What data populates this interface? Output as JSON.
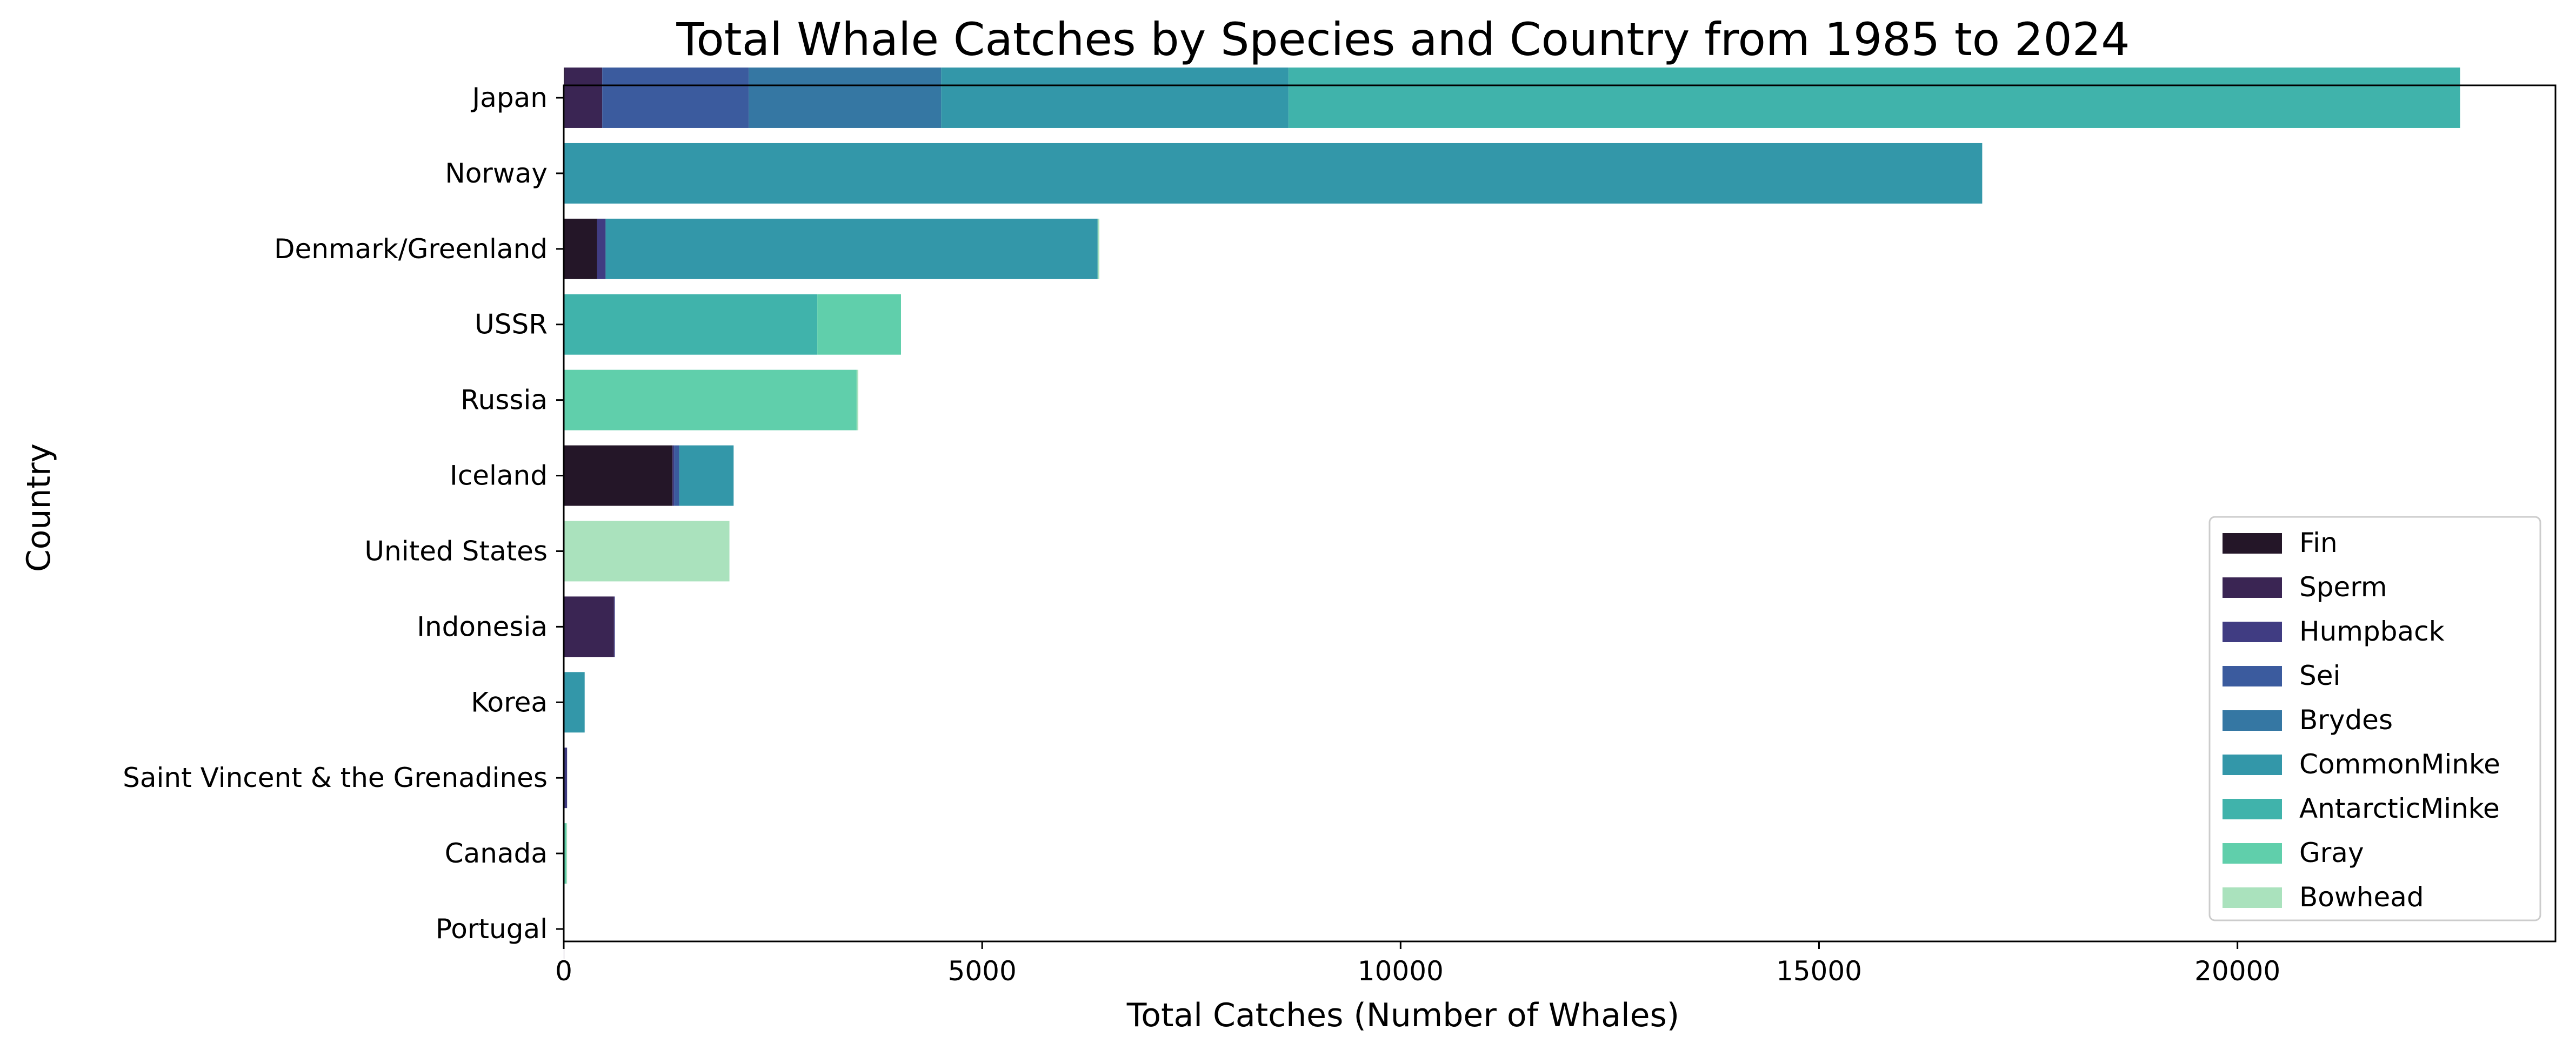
{
  "chart_data": {
    "type": "bar",
    "orientation": "horizontal",
    "stacked": true,
    "title": "Total Whale Catches by Species and Country from 1985 to 2024",
    "xlabel": "Total Catches (Number of Whales)",
    "ylabel": "Country",
    "xlim": [
      0,
      23800
    ],
    "xticks": [
      0,
      5000,
      10000,
      15000,
      20000
    ],
    "grid": false,
    "legend_position": "lower-right",
    "categories": [
      "Japan",
      "Norway",
      "Denmark/Greenland",
      "USSR",
      "Russia",
      "Iceland",
      "United States",
      "Indonesia",
      "Korea",
      "Saint Vincent & the Grenadines",
      "Canada",
      "Portugal"
    ],
    "series": [
      {
        "name": "Fin",
        "color": "#241628",
        "values": [
          10,
          0,
          400,
          0,
          0,
          1300,
          0,
          0,
          0,
          0,
          0,
          0
        ]
      },
      {
        "name": "Sperm",
        "color": "#3a2553",
        "values": [
          450,
          0,
          0,
          0,
          0,
          0,
          0,
          600,
          0,
          0,
          0,
          5
        ]
      },
      {
        "name": "Humpback",
        "color": "#403c82",
        "values": [
          0,
          0,
          100,
          0,
          0,
          20,
          0,
          10,
          0,
          40,
          5,
          0
        ]
      },
      {
        "name": "Sei",
        "color": "#3b5b9e",
        "values": [
          1750,
          0,
          0,
          0,
          0,
          60,
          0,
          0,
          0,
          0,
          0,
          0
        ]
      },
      {
        "name": "Brydes",
        "color": "#3577a3",
        "values": [
          2300,
          0,
          0,
          0,
          0,
          0,
          0,
          0,
          0,
          0,
          0,
          0
        ]
      },
      {
        "name": "CommonMinke",
        "color": "#3397a9",
        "values": [
          4150,
          16950,
          5880,
          0,
          0,
          650,
          0,
          0,
          250,
          0,
          0,
          0
        ]
      },
      {
        "name": "AntarcticMinke",
        "color": "#40b3ab",
        "values": [
          14000,
          0,
          0,
          3030,
          0,
          0,
          0,
          0,
          0,
          0,
          0,
          0
        ]
      },
      {
        "name": "Gray",
        "color": "#60cfab",
        "values": [
          0,
          0,
          0,
          1000,
          3500,
          0,
          0,
          0,
          0,
          0,
          25,
          0
        ]
      },
      {
        "name": "Bowhead",
        "color": "#aae2bd",
        "values": [
          0,
          0,
          20,
          0,
          20,
          0,
          1980,
          0,
          0,
          0,
          10,
          0
        ]
      }
    ]
  }
}
